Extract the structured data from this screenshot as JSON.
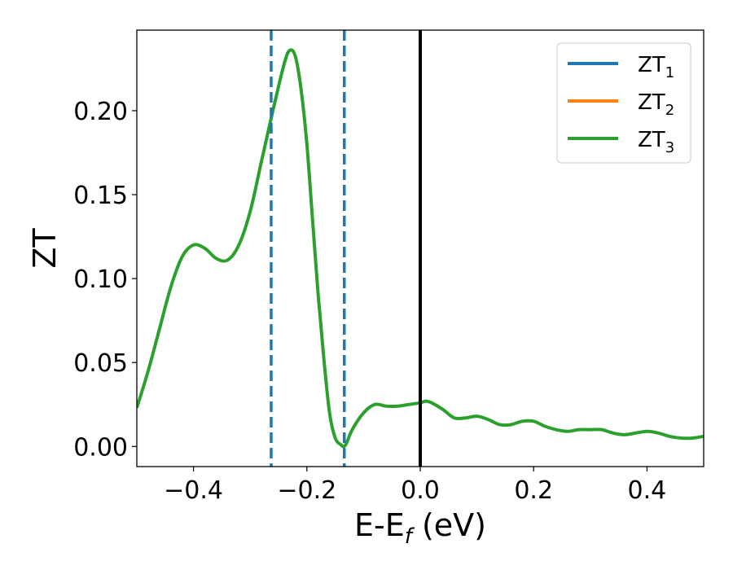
{
  "chart_data": {
    "type": "line",
    "xlabel": {
      "main": "E-E",
      "sub": "f",
      "unit": " (eV)"
    },
    "ylabel": "ZT",
    "xlim": [
      -0.5,
      0.5
    ],
    "ylim": [
      -0.012,
      0.248
    ],
    "xticks": [
      -0.4,
      -0.2,
      0.0,
      0.2,
      0.4
    ],
    "xtick_labels": [
      "−0.4",
      "−0.2",
      "0.0",
      "0.2",
      "0.4"
    ],
    "yticks": [
      0.0,
      0.05,
      0.1,
      0.15,
      0.2
    ],
    "ytick_labels": [
      "0.00",
      "0.05",
      "0.10",
      "0.15",
      "0.20"
    ],
    "grid": false,
    "legend_position": "top-right",
    "series": [
      {
        "name": "ZT",
        "sub": "1",
        "color": "#1f77b4"
      },
      {
        "name": "ZT",
        "sub": "2",
        "color": "#ff7f0e"
      },
      {
        "name": "ZT",
        "sub": "3",
        "color": "#2ca02c"
      }
    ],
    "curve": {
      "x": [
        -0.5,
        -0.48,
        -0.46,
        -0.44,
        -0.42,
        -0.4,
        -0.38,
        -0.36,
        -0.34,
        -0.32,
        -0.3,
        -0.28,
        -0.26,
        -0.24,
        -0.23,
        -0.22,
        -0.21,
        -0.2,
        -0.19,
        -0.18,
        -0.17,
        -0.16,
        -0.15,
        -0.14,
        -0.135,
        -0.13,
        -0.12,
        -0.1,
        -0.08,
        -0.06,
        -0.04,
        -0.02,
        0.0,
        0.01,
        0.02,
        0.04,
        0.06,
        0.08,
        0.1,
        0.12,
        0.14,
        0.16,
        0.18,
        0.2,
        0.22,
        0.24,
        0.26,
        0.28,
        0.3,
        0.32,
        0.34,
        0.36,
        0.38,
        0.4,
        0.42,
        0.44,
        0.46,
        0.48,
        0.5
      ],
      "y": [
        0.023,
        0.045,
        0.07,
        0.095,
        0.113,
        0.12,
        0.118,
        0.112,
        0.111,
        0.12,
        0.14,
        0.17,
        0.2,
        0.228,
        0.236,
        0.232,
        0.212,
        0.18,
        0.135,
        0.09,
        0.052,
        0.02,
        0.005,
        0.001,
        0.0,
        0.002,
        0.01,
        0.02,
        0.025,
        0.024,
        0.024,
        0.025,
        0.026,
        0.027,
        0.026,
        0.022,
        0.017,
        0.017,
        0.018,
        0.016,
        0.013,
        0.013,
        0.015,
        0.015,
        0.012,
        0.01,
        0.009,
        0.01,
        0.01,
        0.01,
        0.008,
        0.007,
        0.008,
        0.009,
        0.008,
        0.006,
        0.005,
        0.005,
        0.006
      ],
      "color": "#2ca02c"
    },
    "vlines": [
      {
        "x": -0.263,
        "color": "#1f77b4",
        "style": "dashed"
      },
      {
        "x": -0.134,
        "color": "#1f77b4",
        "style": "dashed"
      },
      {
        "x": 0.0,
        "color": "#000000",
        "style": "solid"
      }
    ]
  }
}
